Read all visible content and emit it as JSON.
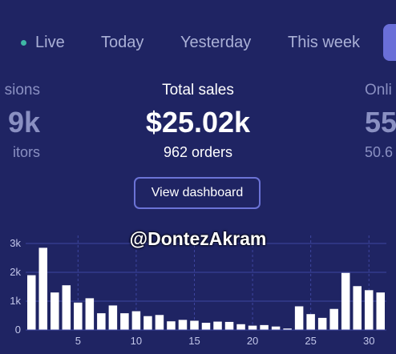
{
  "tabs": [
    {
      "label": "Live",
      "status_color": "#3fb7a6"
    },
    {
      "label": "Today"
    },
    {
      "label": "Yesterday"
    },
    {
      "label": "This week"
    }
  ],
  "metrics": {
    "left": {
      "label": "sions",
      "value": "9k",
      "sub": "itors"
    },
    "main": {
      "label": "Total sales",
      "value": "$25.02k",
      "sub": "962 orders"
    },
    "right": {
      "label": "Onli",
      "value": "55",
      "sub": "50.6"
    }
  },
  "view_dashboard_label": "View dashboard",
  "watermark": "@DontezAkram",
  "colors": {
    "background": "#1f2463",
    "accent": "#6a6fd8",
    "bar": "#ffffff",
    "grid": "#3e46a0"
  },
  "chart_data": {
    "type": "bar",
    "x": [
      1,
      2,
      3,
      4,
      5,
      6,
      7,
      8,
      9,
      10,
      11,
      12,
      13,
      14,
      15,
      16,
      17,
      18,
      19,
      20,
      21,
      22,
      23,
      24,
      25,
      26,
      27,
      28,
      29,
      30,
      31
    ],
    "values": [
      1900,
      2850,
      1300,
      1550,
      950,
      1100,
      580,
      850,
      580,
      650,
      480,
      520,
      300,
      350,
      320,
      250,
      290,
      280,
      200,
      150,
      170,
      120,
      50,
      820,
      550,
      420,
      730,
      1980,
      1520,
      1380,
      1300
    ],
    "y_ticks": [
      "0",
      "1k",
      "2k",
      "3k"
    ],
    "x_ticks": [
      "5",
      "10",
      "15",
      "20",
      "25",
      "30"
    ],
    "ylim": [
      0,
      3000
    ],
    "grid": true
  }
}
